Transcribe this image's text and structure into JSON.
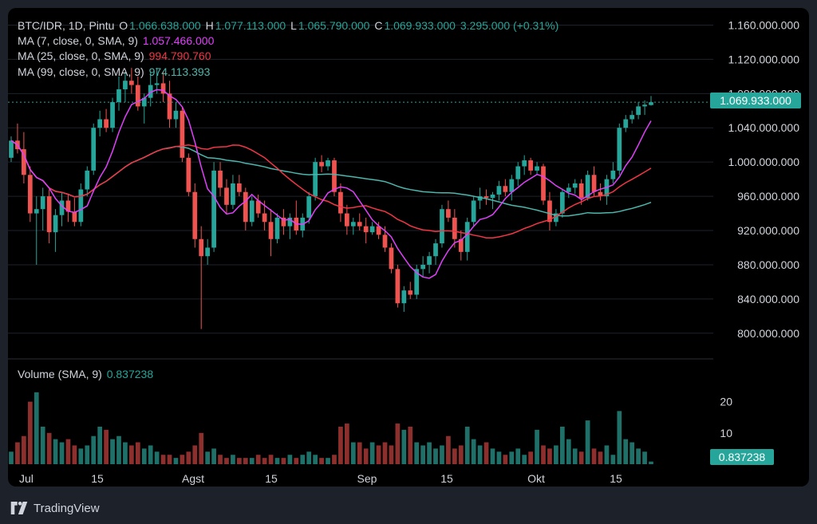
{
  "legend": {
    "symbol": "BTC/IDR, 1D, Pintu",
    "open_label": "O",
    "open": "1.066.638.000",
    "high_label": "H",
    "high": "1.077.113.000",
    "low_label": "L",
    "low": "1.065.790.000",
    "close_label": "C",
    "close": "1.069.933.000",
    "change": "3.295.000 (+0.31%)",
    "ma7_label": "MA (7, close, 0, SMA, 9)",
    "ma7_value": "1.057.466.000",
    "ma25_label": "MA (25, close, 0, SMA, 9)",
    "ma25_value": "994.790.760",
    "ma99_label": "MA (99, close, 0, SMA, 9)",
    "ma99_value": "974.113.393",
    "volume_label": "Volume (SMA, 9)",
    "volume_value": "0.837238"
  },
  "price_badge": "1.069.933.000",
  "volume_badge": "0.837238",
  "brand": "TradingView",
  "colors": {
    "up": "#26a69a",
    "down": "#ef5350",
    "ma7": "#e040fb",
    "ma25": "#f23645",
    "ma99": "#4db6ac",
    "grid": "#1e222b",
    "text": "#d1d4dc"
  },
  "chart_data": {
    "type": "candlestick",
    "x_tick_labels": [
      "Jul",
      "15",
      "Agst",
      "15",
      "Sep",
      "15",
      "Okt",
      "15"
    ],
    "price_axis": {
      "ylim": [
        770000000,
        1180000000
      ],
      "tick_labels": [
        "1.160.000.000",
        "1.120.000.000",
        "1.080.000.000",
        "1.040.000.000",
        "1.000.000.000",
        "960.000.000",
        "920.000.000",
        "880.000.000",
        "840.000.000",
        "800.000.000"
      ],
      "tick_values": [
        1160000000,
        1120000000,
        1080000000,
        1040000000,
        1000000000,
        960000000,
        920000000,
        880000000,
        840000000,
        800000000
      ]
    },
    "volume_axis": {
      "ylim": [
        0,
        25
      ],
      "tick_labels": [
        "20",
        "10"
      ],
      "tick_values": [
        20,
        10
      ]
    },
    "last_close": 1069933000,
    "candles": [
      {
        "o": 1005,
        "h": 1030,
        "l": 1000,
        "c": 1025,
        "v": 4
      },
      {
        "o": 1025,
        "h": 1045,
        "l": 1010,
        "c": 1015,
        "v": 7
      },
      {
        "o": 1015,
        "h": 1035,
        "l": 975,
        "c": 985,
        "v": 9
      },
      {
        "o": 985,
        "h": 995,
        "l": 930,
        "c": 940,
        "v": 20
      },
      {
        "o": 940,
        "h": 960,
        "l": 880,
        "c": 945,
        "v": 23
      },
      {
        "o": 945,
        "h": 970,
        "l": 920,
        "c": 960,
        "v": 12
      },
      {
        "o": 960,
        "h": 968,
        "l": 905,
        "c": 918,
        "v": 10
      },
      {
        "o": 918,
        "h": 945,
        "l": 895,
        "c": 938,
        "v": 8
      },
      {
        "o": 938,
        "h": 965,
        "l": 925,
        "c": 955,
        "v": 7
      },
      {
        "o": 955,
        "h": 962,
        "l": 930,
        "c": 942,
        "v": 8
      },
      {
        "o": 942,
        "h": 958,
        "l": 925,
        "c": 930,
        "v": 6
      },
      {
        "o": 930,
        "h": 975,
        "l": 925,
        "c": 968,
        "v": 5
      },
      {
        "o": 968,
        "h": 995,
        "l": 960,
        "c": 990,
        "v": 6
      },
      {
        "o": 990,
        "h": 1045,
        "l": 985,
        "c": 1040,
        "v": 9
      },
      {
        "o": 1040,
        "h": 1060,
        "l": 1030,
        "c": 1050,
        "v": 12
      },
      {
        "o": 1050,
        "h": 1062,
        "l": 1035,
        "c": 1040,
        "v": 11
      },
      {
        "o": 1040,
        "h": 1075,
        "l": 1035,
        "c": 1070,
        "v": 8
      },
      {
        "o": 1070,
        "h": 1100,
        "l": 1060,
        "c": 1085,
        "v": 9
      },
      {
        "o": 1085,
        "h": 1105,
        "l": 1070,
        "c": 1095,
        "v": 7
      },
      {
        "o": 1095,
        "h": 1110,
        "l": 1080,
        "c": 1090,
        "v": 6
      },
      {
        "o": 1090,
        "h": 1100,
        "l": 1060,
        "c": 1065,
        "v": 7
      },
      {
        "o": 1065,
        "h": 1080,
        "l": 1045,
        "c": 1075,
        "v": 5
      },
      {
        "o": 1075,
        "h": 1105,
        "l": 1065,
        "c": 1090,
        "v": 6
      },
      {
        "o": 1090,
        "h": 1110,
        "l": 1080,
        "c": 1092,
        "v": 4
      },
      {
        "o": 1092,
        "h": 1105,
        "l": 1070,
        "c": 1080,
        "v": 3
      },
      {
        "o": 1080,
        "h": 1095,
        "l": 1040,
        "c": 1050,
        "v": 3
      },
      {
        "o": 1050,
        "h": 1070,
        "l": 1040,
        "c": 1060,
        "v": 2
      },
      {
        "o": 1060,
        "h": 1065,
        "l": 1000,
        "c": 1005,
        "v": 3
      },
      {
        "o": 1005,
        "h": 1010,
        "l": 960,
        "c": 965,
        "v": 4
      },
      {
        "o": 965,
        "h": 975,
        "l": 900,
        "c": 910,
        "v": 6
      },
      {
        "o": 910,
        "h": 925,
        "l": 805,
        "c": 890,
        "v": 10
      },
      {
        "o": 890,
        "h": 910,
        "l": 880,
        "c": 900,
        "v": 4
      },
      {
        "o": 900,
        "h": 1000,
        "l": 895,
        "c": 990,
        "v": 5
      },
      {
        "o": 990,
        "h": 1000,
        "l": 960,
        "c": 970,
        "v": 3
      },
      {
        "o": 970,
        "h": 980,
        "l": 940,
        "c": 950,
        "v": 2
      },
      {
        "o": 950,
        "h": 985,
        "l": 945,
        "c": 975,
        "v": 3
      },
      {
        "o": 975,
        "h": 985,
        "l": 960,
        "c": 965,
        "v": 2
      },
      {
        "o": 965,
        "h": 970,
        "l": 920,
        "c": 930,
        "v": 2
      },
      {
        "o": 930,
        "h": 960,
        "l": 925,
        "c": 955,
        "v": 2
      },
      {
        "o": 955,
        "h": 962,
        "l": 935,
        "c": 940,
        "v": 3
      },
      {
        "o": 940,
        "h": 955,
        "l": 920,
        "c": 930,
        "v": 2
      },
      {
        "o": 930,
        "h": 945,
        "l": 890,
        "c": 910,
        "v": 3
      },
      {
        "o": 910,
        "h": 940,
        "l": 905,
        "c": 935,
        "v": 2
      },
      {
        "o": 935,
        "h": 945,
        "l": 915,
        "c": 925,
        "v": 2
      },
      {
        "o": 925,
        "h": 940,
        "l": 910,
        "c": 935,
        "v": 3
      },
      {
        "o": 935,
        "h": 955,
        "l": 915,
        "c": 920,
        "v": 2
      },
      {
        "o": 920,
        "h": 940,
        "l": 912,
        "c": 935,
        "v": 3
      },
      {
        "o": 935,
        "h": 965,
        "l": 928,
        "c": 960,
        "v": 4
      },
      {
        "o": 960,
        "h": 1005,
        "l": 955,
        "c": 1000,
        "v": 3
      },
      {
        "o": 1000,
        "h": 1008,
        "l": 988,
        "c": 995,
        "v": 2
      },
      {
        "o": 995,
        "h": 1005,
        "l": 990,
        "c": 1002,
        "v": 2
      },
      {
        "o": 1002,
        "h": 1005,
        "l": 960,
        "c": 965,
        "v": 3
      },
      {
        "o": 965,
        "h": 975,
        "l": 930,
        "c": 940,
        "v": 12
      },
      {
        "o": 940,
        "h": 950,
        "l": 915,
        "c": 925,
        "v": 13
      },
      {
        "o": 925,
        "h": 935,
        "l": 915,
        "c": 930,
        "v": 7
      },
      {
        "o": 930,
        "h": 940,
        "l": 920,
        "c": 925,
        "v": 7
      },
      {
        "o": 925,
        "h": 935,
        "l": 905,
        "c": 918,
        "v": 5
      },
      {
        "o": 918,
        "h": 930,
        "l": 915,
        "c": 925,
        "v": 7
      },
      {
        "o": 925,
        "h": 930,
        "l": 910,
        "c": 915,
        "v": 6
      },
      {
        "o": 915,
        "h": 925,
        "l": 895,
        "c": 900,
        "v": 7
      },
      {
        "o": 900,
        "h": 905,
        "l": 870,
        "c": 875,
        "v": 6
      },
      {
        "o": 875,
        "h": 880,
        "l": 830,
        "c": 835,
        "v": 13
      },
      {
        "o": 835,
        "h": 855,
        "l": 825,
        "c": 850,
        "v": 11
      },
      {
        "o": 850,
        "h": 860,
        "l": 840,
        "c": 845,
        "v": 12
      },
      {
        "o": 845,
        "h": 880,
        "l": 840,
        "c": 875,
        "v": 7
      },
      {
        "o": 875,
        "h": 890,
        "l": 865,
        "c": 880,
        "v": 6
      },
      {
        "o": 880,
        "h": 895,
        "l": 870,
        "c": 890,
        "v": 7
      },
      {
        "o": 890,
        "h": 910,
        "l": 880,
        "c": 905,
        "v": 5
      },
      {
        "o": 905,
        "h": 950,
        "l": 900,
        "c": 945,
        "v": 6
      },
      {
        "o": 945,
        "h": 955,
        "l": 930,
        "c": 935,
        "v": 9
      },
      {
        "o": 935,
        "h": 945,
        "l": 900,
        "c": 910,
        "v": 5
      },
      {
        "o": 910,
        "h": 920,
        "l": 885,
        "c": 895,
        "v": 6
      },
      {
        "o": 895,
        "h": 935,
        "l": 885,
        "c": 930,
        "v": 12
      },
      {
        "o": 930,
        "h": 960,
        "l": 925,
        "c": 955,
        "v": 8
      },
      {
        "o": 955,
        "h": 970,
        "l": 945,
        "c": 960,
        "v": 6
      },
      {
        "o": 960,
        "h": 968,
        "l": 950,
        "c": 958,
        "v": 7
      },
      {
        "o": 958,
        "h": 965,
        "l": 945,
        "c": 962,
        "v": 5
      },
      {
        "o": 962,
        "h": 978,
        "l": 955,
        "c": 972,
        "v": 4
      },
      {
        "o": 972,
        "h": 980,
        "l": 960,
        "c": 965,
        "v": 3
      },
      {
        "o": 965,
        "h": 985,
        "l": 955,
        "c": 980,
        "v": 4
      },
      {
        "o": 980,
        "h": 1000,
        "l": 972,
        "c": 995,
        "v": 5
      },
      {
        "o": 995,
        "h": 1008,
        "l": 985,
        "c": 1002,
        "v": 3
      },
      {
        "o": 1002,
        "h": 1005,
        "l": 985,
        "c": 990,
        "v": 4
      },
      {
        "o": 990,
        "h": 1000,
        "l": 985,
        "c": 995,
        "v": 11
      },
      {
        "o": 995,
        "h": 998,
        "l": 950,
        "c": 955,
        "v": 6
      },
      {
        "o": 955,
        "h": 965,
        "l": 920,
        "c": 930,
        "v": 5
      },
      {
        "o": 930,
        "h": 945,
        "l": 925,
        "c": 940,
        "v": 6
      },
      {
        "o": 940,
        "h": 968,
        "l": 935,
        "c": 965,
        "v": 12
      },
      {
        "o": 965,
        "h": 975,
        "l": 958,
        "c": 970,
        "v": 8
      },
      {
        "o": 970,
        "h": 980,
        "l": 963,
        "c": 975,
        "v": 5
      },
      {
        "o": 975,
        "h": 980,
        "l": 950,
        "c": 958,
        "v": 4
      },
      {
        "o": 958,
        "h": 990,
        "l": 955,
        "c": 985,
        "v": 14
      },
      {
        "o": 985,
        "h": 995,
        "l": 960,
        "c": 965,
        "v": 5
      },
      {
        "o": 965,
        "h": 975,
        "l": 955,
        "c": 960,
        "v": 4
      },
      {
        "o": 960,
        "h": 985,
        "l": 950,
        "c": 980,
        "v": 6
      },
      {
        "o": 980,
        "h": 1000,
        "l": 975,
        "c": 990,
        "v": 3
      },
      {
        "o": 990,
        "h": 1045,
        "l": 985,
        "c": 1040,
        "v": 17
      },
      {
        "o": 1040,
        "h": 1055,
        "l": 1035,
        "c": 1050,
        "v": 8
      },
      {
        "o": 1050,
        "h": 1060,
        "l": 1045,
        "c": 1055,
        "v": 7
      },
      {
        "o": 1055,
        "h": 1070,
        "l": 1050,
        "c": 1065,
        "v": 5
      },
      {
        "o": 1065,
        "h": 1072,
        "l": 1055,
        "c": 1067,
        "v": 4
      },
      {
        "o": 1066.6,
        "h": 1077.1,
        "l": 1065.8,
        "c": 1069.9,
        "v": 0.84
      }
    ]
  }
}
